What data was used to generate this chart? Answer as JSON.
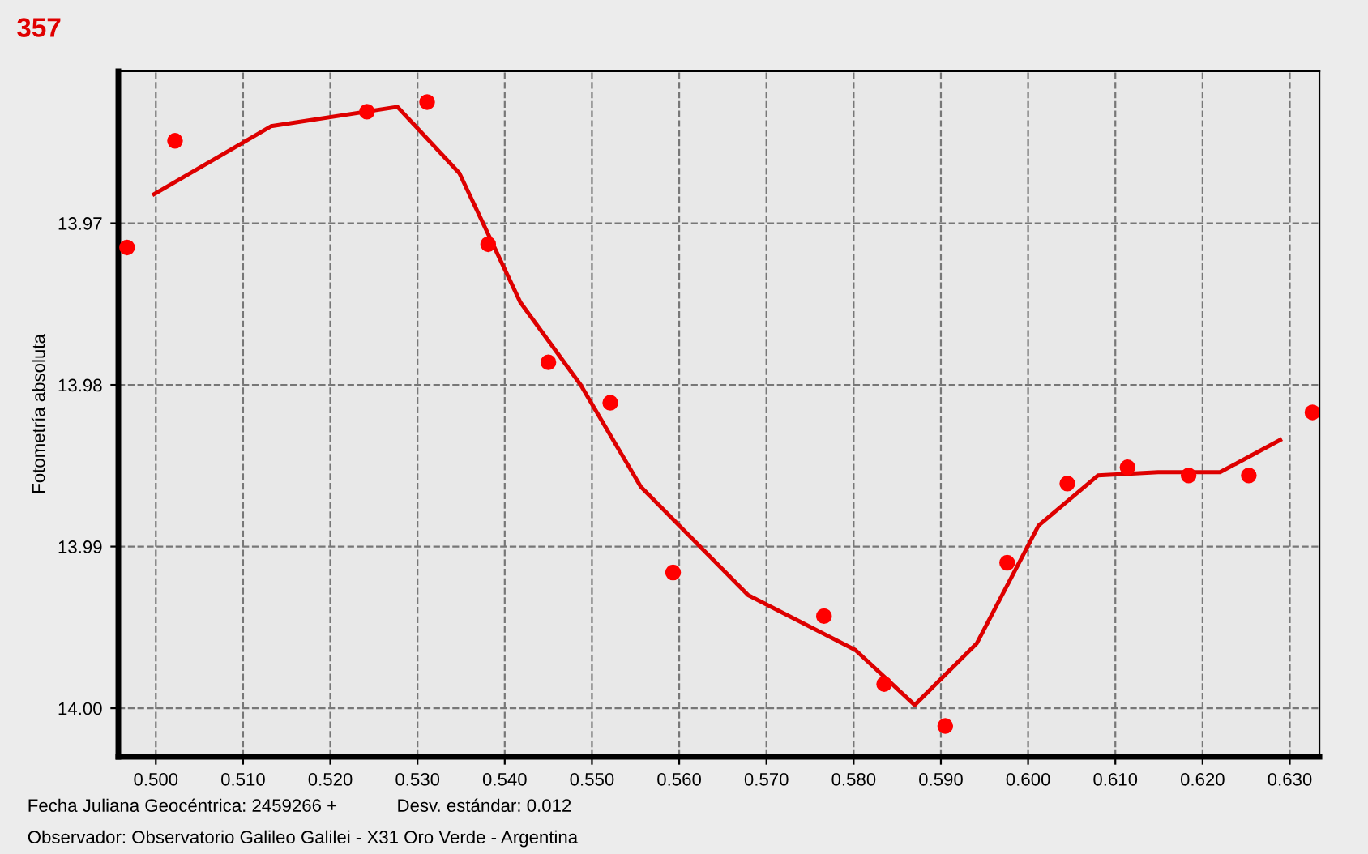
{
  "chart_data": {
    "type": "scatter",
    "title": "357",
    "xlabel": "Fecha Juliana Geocéntrica: 2459266 +",
    "ylabel": "Fotometría absoluta",
    "annotations": [
      "Desv. estándar: 0.012",
      "Observador: Observatorio Galileo Galilei - X31 Oro Verde - Argentina"
    ],
    "series": [
      {
        "color": "#ff0000",
        "marker": "circle",
        "x": [
          0.4967,
          0.5022,
          0.5242,
          0.5311,
          0.5381,
          0.545,
          0.5521,
          0.5593,
          0.5766,
          0.5835,
          0.5905,
          0.5976,
          0.6045,
          0.6114,
          0.6184,
          0.6253,
          0.6326
        ],
        "values": [
          13.9715,
          13.9649,
          13.9631,
          13.9625,
          13.9713,
          13.9786,
          13.9811,
          13.9916,
          13.9943,
          13.9985,
          14.0011,
          13.991,
          13.9861,
          13.9851,
          13.9856,
          13.9856,
          13.9817
        ]
      },
      {
        "type": "line",
        "color": "#dd0000",
        "marker": "none",
        "line_style": "solid",
        "x": [
          0.4998,
          0.5132,
          0.5277,
          0.5348,
          0.5418,
          0.5487,
          0.5556,
          0.5679,
          0.5802,
          0.587,
          0.5941,
          0.6012,
          0.608,
          0.6149,
          0.622,
          0.6289
        ],
        "values": [
          13.9682,
          13.964,
          13.9628,
          13.9669,
          13.9749,
          13.98,
          13.9863,
          13.993,
          13.9964,
          13.9998,
          13.996,
          13.9887,
          13.9856,
          13.9854,
          13.9854,
          13.9834
        ]
      }
    ],
    "xlim": [
      0.4957,
      0.6334
    ],
    "ylim": [
      14.003,
      13.9606
    ],
    "xticks": [
      {
        "value": 0.5,
        "label": "0.500"
      },
      {
        "value": 0.51,
        "label": "0.510"
      },
      {
        "value": 0.52,
        "label": "0.520"
      },
      {
        "value": 0.53,
        "label": "0.530"
      },
      {
        "value": 0.54,
        "label": "0.540"
      },
      {
        "value": 0.55,
        "label": "0.550"
      },
      {
        "value": 0.56,
        "label": "0.560"
      },
      {
        "value": 0.57,
        "label": "0.570"
      },
      {
        "value": 0.58,
        "label": "0.580"
      },
      {
        "value": 0.59,
        "label": "0.590"
      },
      {
        "value": 0.6,
        "label": "0.600"
      },
      {
        "value": 0.61,
        "label": "0.610"
      },
      {
        "value": 0.62,
        "label": "0.620"
      },
      {
        "value": 0.63,
        "label": "0.630"
      }
    ],
    "yticks": [
      13.97,
      13.98,
      13.99,
      {
        "value": 14.0,
        "label": "14.00"
      }
    ],
    "grid": true,
    "legend": false
  }
}
